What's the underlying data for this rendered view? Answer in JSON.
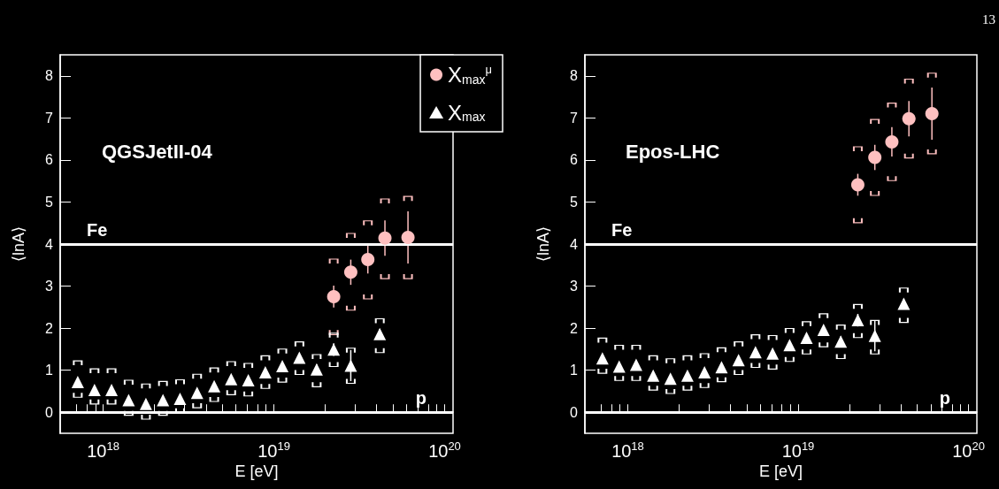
{
  "chart_data": [
    {
      "type": "scatter",
      "title": "QGSJetII-04",
      "xlabel": "E [eV]",
      "ylabel": "⟨lnA⟩",
      "log": "x",
      "legend": "top right",
      "xlim": [
        5.6e+17,
        1.12e+20
      ],
      "xticks": [
        {
          "value": 7e+17,
          "label": null
        },
        {
          "value": 8e+17,
          "label": null
        },
        {
          "value": 9e+17,
          "label": null
        },
        {
          "value": 1e+18,
          "label": "10$^{18}$"
        },
        {
          "value": 2e+18,
          "label": null
        },
        {
          "value": 3e+18,
          "label": null
        },
        {
          "value": 4e+18,
          "label": null
        },
        {
          "value": 5e+18,
          "label": null
        },
        {
          "value": 6e+18,
          "label": null
        },
        {
          "value": 7e+18,
          "label": null
        },
        {
          "value": 8e+18,
          "label": null
        },
        {
          "value": 9e+18,
          "label": null
        },
        {
          "value": 1e+19,
          "label": "10$^{19}$"
        },
        {
          "value": 2e+19,
          "label": null
        },
        {
          "value": 3e+19,
          "label": null
        },
        {
          "value": 4e+19,
          "label": null
        },
        {
          "value": 5e+19,
          "label": null
        },
        {
          "value": 6e+19,
          "label": null
        },
        {
          "value": 7e+19,
          "label": null
        },
        {
          "value": 8e+19,
          "label": null
        },
        {
          "value": 9e+19,
          "label": null
        },
        {
          "value": 1e+20,
          "label": "10$^{20}$"
        }
      ],
      "ylim": [
        -0.5,
        8.5
      ],
      "yticks": [
        0,
        1,
        2,
        3,
        4,
        5,
        6,
        7,
        8
      ],
      "ref_lines": [
        {
          "axis": "y",
          "value": 4,
          "label": "Fe",
          "color": "#ffffff"
        },
        {
          "axis": "y",
          "value": 0,
          "label": "p",
          "color": "#ffffff"
        }
      ],
      "series": [
        {
          "name": "X$_{max}$$^{μ}$",
          "color": "#ffc0c0",
          "marker": "circle",
          "x": [
            2.24e+19,
            2.82e+19,
            3.55e+19,
            4.47e+19,
            6.1e+19
          ],
          "values": [
            2.75,
            3.33,
            3.63,
            4.14,
            4.16
          ],
          "errors": [
            0.26,
            0.3,
            0.33,
            0.42,
            0.62
          ]
        },
        {
          "color": "#ffc0c0",
          "x": [
            2.24e+19,
            2.82e+19,
            3.55e+19,
            4.47e+19,
            6.1e+19
          ],
          "values": [
            3.59,
            4.2,
            4.5,
            5.02,
            5.08
          ]
        },
        {
          "color": "#ffc0c0",
          "x": [
            2.24e+19,
            2.82e+19,
            3.55e+19,
            4.47e+19,
            6.1e+19
          ],
          "values": [
            1.9,
            2.48,
            2.75,
            3.23,
            3.23
          ]
        },
        {
          "name": "X$_{max}$",
          "color": "#ffffff",
          "marker": "triangle",
          "x": [
            7.1e+17,
            8.9e+17,
            1.12e+18,
            1.41e+18,
            1.78e+18,
            2.24e+18,
            2.82e+18,
            3.55e+18,
            4.47e+18,
            5.62e+18,
            7.08e+18,
            8.91e+18,
            1.12e+19,
            1.41e+19,
            1.78e+19,
            2.24e+19,
            2.82e+19,
            4.17e+19
          ],
          "values": [
            0.72,
            0.53,
            0.53,
            0.29,
            0.2,
            0.29,
            0.32,
            0.46,
            0.62,
            0.79,
            0.76,
            0.95,
            1.1,
            1.3,
            1.02,
            1.49,
            1.11,
            1.86
          ],
          "errors": [
            0.06,
            0.06,
            0.06,
            0.06,
            0.06,
            0.06,
            0.06,
            0.06,
            0.06,
            0.06,
            0.06,
            0.06,
            0.08,
            0.08,
            0.12,
            0.15,
            0.37,
            0.12
          ]
        },
        {
          "color": "#ffffff",
          "x": [
            7.1e+17,
            8.9e+17,
            1.12e+18,
            1.41e+18,
            1.78e+18,
            2.24e+18,
            2.82e+18,
            3.55e+18,
            4.47e+18,
            5.62e+18,
            7.08e+18,
            8.91e+18,
            1.12e+19,
            1.41e+19,
            1.78e+19,
            2.24e+19,
            2.82e+19,
            4.17e+19
          ],
          "values": [
            1.17,
            0.98,
            0.98,
            0.71,
            0.62,
            0.68,
            0.72,
            0.85,
            1.0,
            1.15,
            1.11,
            1.29,
            1.45,
            1.62,
            1.32,
            1.83,
            1.47,
            2.17
          ]
        },
        {
          "color": "#ffffff",
          "x": [
            7.1e+17,
            8.9e+17,
            1.12e+18,
            1.41e+18,
            1.78e+18,
            2.24e+18,
            2.82e+18,
            3.55e+18,
            4.47e+18,
            5.62e+18,
            7.08e+18,
            8.91e+18,
            1.12e+19,
            1.41e+19,
            1.78e+19,
            2.24e+19,
            2.82e+19,
            4.17e+19
          ],
          "values": [
            0.41,
            0.25,
            0.25,
            -0.02,
            -0.11,
            -0.02,
            0.04,
            0.16,
            0.31,
            0.47,
            0.44,
            0.62,
            0.77,
            0.95,
            0.66,
            1.14,
            0.74,
            1.47
          ]
        }
      ]
    },
    {
      "type": "scatter",
      "title": "Epos-LHC",
      "xlabel": "E [eV]",
      "ylabel": "⟨lnA⟩",
      "log": "x",
      "xlim": [
        5.6e+17,
        1.12e+20
      ],
      "xticks": [
        {
          "value": 7e+17,
          "label": null
        },
        {
          "value": 8e+17,
          "label": null
        },
        {
          "value": 9e+17,
          "label": null
        },
        {
          "value": 1e+18,
          "label": "10$^{18}$"
        },
        {
          "value": 2e+18,
          "label": null
        },
        {
          "value": 3e+18,
          "label": null
        },
        {
          "value": 4e+18,
          "label": null
        },
        {
          "value": 5e+18,
          "label": null
        },
        {
          "value": 6e+18,
          "label": null
        },
        {
          "value": 7e+18,
          "label": null
        },
        {
          "value": 8e+18,
          "label": null
        },
        {
          "value": 9e+18,
          "label": null
        },
        {
          "value": 1e+19,
          "label": "10$^{19}$"
        },
        {
          "value": 2e+19,
          "label": null
        },
        {
          "value": 3e+19,
          "label": null
        },
        {
          "value": 4e+19,
          "label": null
        },
        {
          "value": 5e+19,
          "label": null
        },
        {
          "value": 6e+19,
          "label": null
        },
        {
          "value": 7e+19,
          "label": null
        },
        {
          "value": 8e+19,
          "label": null
        },
        {
          "value": 9e+19,
          "label": null
        },
        {
          "value": 1e+20,
          "label": "10$^{20}$"
        }
      ],
      "ylim": [
        -0.5,
        8.5
      ],
      "yticks": [
        0,
        1,
        2,
        3,
        4,
        5,
        6,
        7,
        8
      ],
      "ref_lines": [
        {
          "axis": "y",
          "value": 4,
          "label": "Fe",
          "color": "#ffffff"
        },
        {
          "axis": "y",
          "value": 0,
          "label": "p",
          "color": "#ffffff"
        }
      ],
      "annotations": [
        "13"
      ],
      "series": [
        {
          "color": "#ffc0c0",
          "marker": "circle",
          "x": [
            2.24e+19,
            2.82e+19,
            3.55e+19,
            4.47e+19,
            6.1e+19
          ],
          "values": [
            5.41,
            6.06,
            6.43,
            6.98,
            7.1
          ],
          "errors": [
            0.26,
            0.3,
            0.35,
            0.42,
            0.62
          ]
        },
        {
          "color": "#ffc0c0",
          "x": [
            2.24e+19,
            2.82e+19,
            3.55e+19,
            4.47e+19,
            6.1e+19
          ],
          "values": [
            6.26,
            6.91,
            7.3,
            7.87,
            8.01
          ]
        },
        {
          "color": "#ffc0c0",
          "x": [
            2.24e+19,
            2.82e+19,
            3.55e+19,
            4.47e+19,
            6.1e+19
          ],
          "values": [
            4.56,
            5.21,
            5.56,
            6.1,
            6.2
          ]
        },
        {
          "color": "#ffffff",
          "marker": "triangle",
          "x": [
            7.1e+17,
            8.9e+17,
            1.12e+18,
            1.41e+18,
            1.78e+18,
            2.24e+18,
            2.82e+18,
            3.55e+18,
            4.47e+18,
            5.62e+18,
            7.08e+18,
            8.91e+18,
            1.12e+19,
            1.41e+19,
            1.78e+19,
            2.24e+19,
            2.82e+19,
            4.17e+19
          ],
          "values": [
            1.28,
            1.09,
            1.13,
            0.87,
            0.8,
            0.87,
            0.95,
            1.07,
            1.24,
            1.43,
            1.4,
            1.6,
            1.77,
            1.96,
            1.68,
            2.19,
            1.82,
            2.58
          ],
          "errors": [
            0.06,
            0.06,
            0.06,
            0.06,
            0.06,
            0.06,
            0.06,
            0.06,
            0.06,
            0.06,
            0.06,
            0.06,
            0.08,
            0.08,
            0.12,
            0.15,
            0.37,
            0.12
          ]
        },
        {
          "color": "#ffffff",
          "x": [
            7.1e+17,
            8.9e+17,
            1.12e+18,
            1.41e+18,
            1.78e+18,
            2.24e+18,
            2.82e+18,
            3.55e+18,
            4.47e+18,
            5.62e+18,
            7.08e+18,
            8.91e+18,
            1.12e+19,
            1.41e+19,
            1.78e+19,
            2.24e+19,
            2.82e+19,
            4.17e+19
          ],
          "values": [
            1.71,
            1.54,
            1.54,
            1.29,
            1.22,
            1.29,
            1.34,
            1.48,
            1.62,
            1.79,
            1.77,
            1.94,
            2.1,
            2.29,
            2.02,
            2.51,
            2.13,
            2.9
          ]
        },
        {
          "color": "#ffffff",
          "x": [
            7.1e+17,
            8.9e+17,
            1.12e+18,
            1.41e+18,
            1.78e+18,
            2.24e+18,
            2.82e+18,
            3.55e+18,
            4.47e+18,
            5.62e+18,
            7.08e+18,
            8.91e+18,
            1.12e+19,
            1.41e+19,
            1.78e+19,
            2.24e+19,
            2.82e+19,
            4.17e+19
          ],
          "values": [
            0.98,
            0.81,
            0.81,
            0.58,
            0.5,
            0.58,
            0.64,
            0.78,
            0.95,
            1.12,
            1.08,
            1.26,
            1.44,
            1.61,
            1.33,
            1.83,
            1.44,
            2.19
          ]
        }
      ]
    }
  ]
}
